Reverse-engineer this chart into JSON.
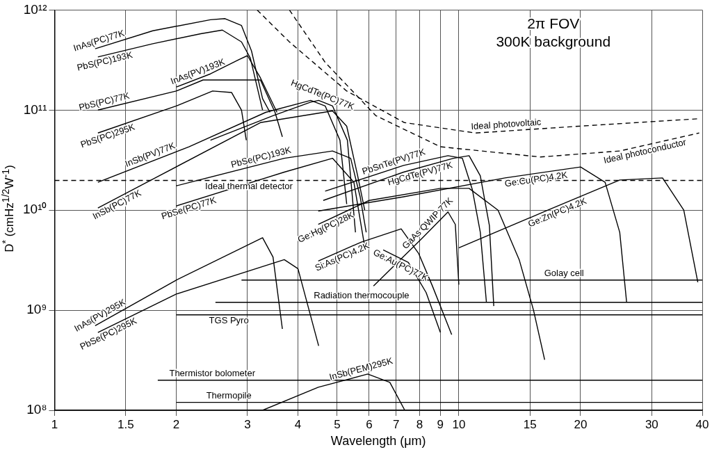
{
  "chart_data": {
    "type": "line",
    "xlabel": "Wavelength (μm)",
    "ylabel": "D$^{*}$ (cmHz$^{1/2}$W$^{-1}$)",
    "log": "xy",
    "grid": true,
    "legend": false,
    "marker": "none",
    "line_style": "solid",
    "xlim": [
      1,
      40
    ],
    "xticks": [
      1,
      1.5,
      2,
      3,
      4,
      5,
      6,
      7,
      8,
      9,
      10,
      15,
      20,
      30,
      40
    ],
    "ylim": [
      100000000.0,
      1000000000000.0
    ],
    "yticks": [
      {
        "value": 100000000.0,
        "label": "10⁸"
      },
      {
        "value": 1000000000.0,
        "label": "10⁹"
      },
      {
        "value": 10000000000.0,
        "label": "10¹⁰"
      },
      {
        "value": 100000000000.0,
        "label": "10¹¹"
      },
      {
        "value": 1000000000000.0,
        "label": "10¹²"
      }
    ],
    "annotations": [
      "2π FOV",
      "300K background"
    ],
    "series": [
      {
        "name": "InAs(PC)77K",
        "color": "#000000",
        "x": [
          1.26,
          1.75,
          2.43,
          2.64,
          2.9,
          3.07,
          3.27,
          3.41
        ],
        "values": [
          410000000000.0,
          620000000000.0,
          800000000000.0,
          820000000000.0,
          700000000000.0,
          390000000000.0,
          130000000000.0,
          95000000000.0
        ]
      },
      {
        "name": "PbS(PC)193K",
        "color": "#000000",
        "x": [
          1.28,
          1.75,
          2.3,
          2.6,
          2.9,
          3.05,
          3.27
        ],
        "values": [
          340000000000.0,
          460000000000.0,
          580000000000.0,
          630000000000.0,
          480000000000.0,
          330000000000.0,
          100000000000.0
        ]
      },
      {
        "name": "InAs(PV)193K",
        "color": "#000000",
        "x": [
          2,
          2.43,
          2.86,
          3,
          3.23,
          3.55
        ],
        "values": [
          170000000000.0,
          230000000000.0,
          320000000000.0,
          350000000000.0,
          210000000000.0,
          95000000000.0
        ]
      },
      {
        "name": "PbS(PC)77K",
        "color": "#000000",
        "x": [
          1.28,
          2,
          2.33,
          3.23,
          3.51,
          3.66
        ],
        "values": [
          100000000000.0,
          155000000000.0,
          200000000000.0,
          200000000000.0,
          95000000000.0,
          54000000000.0
        ]
      },
      {
        "name": "PbS(PC)295K",
        "color": "#000000",
        "x": [
          1.28,
          2,
          2.46,
          2.74,
          2.9,
          2.98
        ],
        "values": [
          59000000000.0,
          110000000000.0,
          155000000000.0,
          150000000000.0,
          100000000000.0,
          50000000000.0
        ]
      },
      {
        "name": "HgCdTe(PC)77K",
        "color": "#000000",
        "x": [
          2.43,
          3.47,
          4.3,
          4.5,
          4.87,
          5.3,
          5.55
        ],
        "values": [
          50000000000.0,
          88000000000.0,
          120000000000.0,
          125000000000.0,
          110000000000.0,
          50000000000.0,
          6000000000.0
        ]
      },
      {
        "name": "InSb(PV)77K",
        "color": "#000000",
        "x": [
          1.28,
          2.15,
          3.33,
          4.3,
          4.67,
          5.08,
          5.28
        ],
        "values": [
          19000000000.0,
          43000000000.0,
          95000000000.0,
          125000000000.0,
          110000000000.0,
          50000000000.0,
          11500000000.0
        ]
      },
      {
        "name": "InSb(PC)77K",
        "color": "#000000",
        "x": [
          1.28,
          3.23,
          4.87,
          5.28,
          5.62,
          5.85
        ],
        "values": [
          10500000000.0,
          75000000000.0,
          98000000000.0,
          69000000000.0,
          22000000000.0,
          10000000000.0
        ]
      },
      {
        "name": "PbSe(PC)193K",
        "color": "#000000",
        "x": [
          2,
          3.7,
          4.87,
          5.4,
          5.7,
          5.9
        ],
        "values": [
          17500000000.0,
          33000000000.0,
          39000000000.0,
          33000000000.0,
          13600000000.0,
          6000000000.0
        ]
      },
      {
        "name": "PbSe(PC)77K",
        "color": "#000000",
        "x": [
          2,
          3.7,
          4.87,
          5.5,
          5.85
        ],
        "values": [
          11000000000.0,
          24000000000.0,
          33000000000.0,
          19000000000.0,
          4300000000.0
        ]
      },
      {
        "name": "PbSnTe(PV)77K",
        "color": "#000000",
        "x": [
          4.67,
          7.3,
          9.4,
          10.2,
          10.8,
          11.3,
          11.7
        ],
        "values": [
          15500000000.0,
          28000000000.0,
          35000000000.0,
          33000000000.0,
          16000000000.0,
          6000000000.0,
          1200000000.0
        ]
      },
      {
        "name": "HgCdTe(PV)77K",
        "color": "#000000",
        "x": [
          4.62,
          7.3,
          9.7,
          10.6,
          11.3,
          11.9,
          12.2
        ],
        "values": [
          12500000000.0,
          24000000000.0,
          33000000000.0,
          35000000000.0,
          22000000000.0,
          7000000000.0,
          1100000000.0
        ]
      },
      {
        "name": "Ge:Hg(PC)28K",
        "color": "#000000",
        "x": [
          4.49,
          6,
          9,
          10.6,
          12.5,
          14.1,
          15.3,
          16.3
        ],
        "values": [
          7200000000.0,
          12500000000.0,
          16500000000.0,
          16500000000.0,
          10000000000.0,
          3200000000.0,
          1000000000.0,
          320000000.0
        ]
      },
      {
        "name": "Ge:Cu(PC)4.2K",
        "color": "#000000",
        "x": [
          4.49,
          7.3,
          13,
          20,
          23,
          25,
          26
        ],
        "values": [
          9800000000.0,
          13600000000.0,
          21000000000.0,
          27000000000.0,
          19000000000.0,
          6000000000.0,
          1200000000.0
        ]
      },
      {
        "name": "Ge:Zn(PC)4.2K",
        "color": "#000000",
        "x": [
          10,
          16.6,
          25,
          31.9,
          36,
          39
        ],
        "values": [
          4200000000.0,
          10000000000.0,
          20000000000.0,
          21000000000.0,
          10000000000.0,
          1900000000.0
        ]
      },
      {
        "name": "Si:As(PC)4.2K",
        "color": "#000000",
        "x": [
          4.49,
          5.74,
          7.2,
          7.95,
          8.6,
          9.6
        ],
        "values": [
          3100000000.0,
          4800000000.0,
          6500000000.0,
          3700000000.0,
          1750000000.0,
          570000000.0
        ]
      },
      {
        "name": "GaAs QWIP 77K",
        "color": "#000000",
        "x": [
          6.15,
          8.1,
          9.4,
          9.8,
          10
        ],
        "values": [
          1750000000.0,
          5200000000.0,
          9600000000.0,
          7200000000.0,
          1800000000.0
        ]
      },
      {
        "name": "Ge:Au(PC)77K",
        "color": "#000000",
        "x": [
          6.5,
          7.5,
          8.3,
          9
        ],
        "values": [
          4000000000.0,
          3000000000.0,
          1500000000.0,
          600000000.0
        ]
      },
      {
        "name": "InAs(PV)295K",
        "color": "#000000",
        "x": [
          1.26,
          2,
          3.27,
          3.47,
          3.66
        ],
        "values": [
          700000000.0,
          2000000000.0,
          5300000000.0,
          3400000000.0,
          650000000.0
        ]
      },
      {
        "name": "PbSe(PC)295K",
        "color": "#000000",
        "x": [
          1.28,
          2,
          3.7,
          4,
          4.5
        ],
        "values": [
          600000000.0,
          1450000000.0,
          3200000000.0,
          2600000000.0,
          440000000.0
        ]
      },
      {
        "name": "InSb(PEM)295K",
        "color": "#000000",
        "x": [
          3.27,
          4.49,
          5.95,
          6.75,
          7.35
        ],
        "values": [
          100000000.0,
          170000000.0,
          230000000.0,
          190000000.0,
          100000000.0
        ]
      },
      {
        "name": "Golay cell",
        "color": "#000000",
        "x": [
          2.9,
          40
        ],
        "values": [
          2000000000.0,
          2000000000.0
        ]
      },
      {
        "name": "Radiation thermocouple",
        "color": "#000000",
        "x": [
          2.5,
          40
        ],
        "values": [
          1200000000.0,
          1200000000.0
        ]
      },
      {
        "name": "TGS Pyro",
        "color": "#000000",
        "x": [
          2,
          40
        ],
        "values": [
          900000000.0,
          900000000.0
        ]
      },
      {
        "name": "Thermistor bolometer",
        "color": "#000000",
        "x": [
          1.8,
          40
        ],
        "values": [
          200000000.0,
          200000000.0
        ]
      },
      {
        "name": "Thermopile",
        "color": "#000000",
        "x": [
          2,
          40
        ],
        "values": [
          120000000.0,
          120000000.0
        ]
      },
      {
        "name": "Ideal photovoltaic",
        "color": "#000000",
        "line_style": "dashed",
        "x": [
          3.17,
          3.81,
          5.28,
          7.33,
          11,
          19.8,
          39.3
        ],
        "values": [
          1000000000000.0,
          480000000000.0,
          155000000000.0,
          75000000000.0,
          59000000000.0,
          69000000000.0,
          82000000000.0
        ]
      },
      {
        "name": "Ideal photoconductor",
        "color": "#000000",
        "line_style": "dashed",
        "x": [
          3.81,
          4.67,
          6.23,
          9,
          15.9,
          25,
          39.3
        ],
        "values": [
          1000000000000.0,
          300000000000.0,
          88000000000.0,
          43000000000.0,
          34000000000.0,
          39000000000.0,
          59000000000.0
        ]
      },
      {
        "name": "Ideal thermal detector",
        "color": "#000000",
        "line_style": "dashed",
        "x": [
          1,
          40
        ],
        "values": [
          19800000000.0,
          19800000000.0
        ]
      }
    ]
  }
}
